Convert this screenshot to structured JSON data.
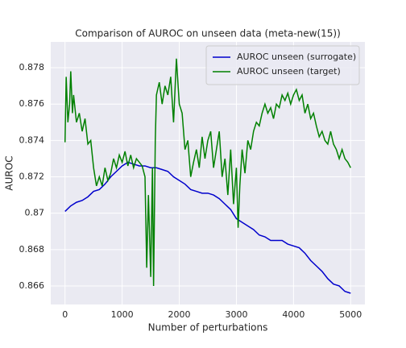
{
  "chart_data": {
    "type": "line",
    "title": "Comparison of AUROC on unseen data (meta-new(15))",
    "x_label": "Number of perturbations",
    "y_label": "AUROC",
    "xlim": [
      -250,
      5250
    ],
    "ylim": [
      0.86498,
      0.87942
    ],
    "xticks": [
      0,
      1000,
      2000,
      3000,
      4000,
      5000
    ],
    "yticks": [
      0.866,
      0.868,
      0.87,
      0.872,
      0.874,
      0.876,
      0.878
    ],
    "grid": true,
    "legend": "upper right",
    "series": [
      {
        "name": "AUROC unseen (surrogate)",
        "color": "#0000cc",
        "x": [
          0,
          100,
          200,
          300,
          400,
          500,
          600,
          700,
          800,
          900,
          1000,
          1100,
          1200,
          1300,
          1400,
          1500,
          1600,
          1700,
          1800,
          1900,
          2000,
          2100,
          2200,
          2300,
          2400,
          2500,
          2600,
          2700,
          2800,
          2900,
          3000,
          3100,
          3200,
          3300,
          3400,
          3500,
          3600,
          3700,
          3800,
          3900,
          4000,
          4100,
          4200,
          4300,
          4400,
          4500,
          4600,
          4700,
          4800,
          4900,
          5000
        ],
        "values": [
          0.8701,
          0.8704,
          0.8706,
          0.8707,
          0.8709,
          0.8712,
          0.8713,
          0.8716,
          0.872,
          0.8723,
          0.8726,
          0.8728,
          0.8727,
          0.8726,
          0.8726,
          0.8725,
          0.8725,
          0.8724,
          0.8723,
          0.872,
          0.8718,
          0.8716,
          0.8713,
          0.8712,
          0.8711,
          0.8711,
          0.871,
          0.8708,
          0.8705,
          0.8702,
          0.8697,
          0.8695,
          0.8693,
          0.8691,
          0.8688,
          0.8687,
          0.8685,
          0.8685,
          0.8685,
          0.8683,
          0.8682,
          0.8681,
          0.8678,
          0.8674,
          0.8671,
          0.8668,
          0.8664,
          0.8661,
          0.866,
          0.8657,
          0.8656
        ]
      },
      {
        "name": "AUROC unseen (target)",
        "color": "#008000",
        "x": [
          0,
          20,
          50,
          80,
          100,
          130,
          150,
          200,
          250,
          300,
          350,
          400,
          450,
          500,
          550,
          600,
          650,
          700,
          750,
          800,
          850,
          900,
          950,
          1000,
          1050,
          1100,
          1150,
          1200,
          1250,
          1300,
          1350,
          1400,
          1430,
          1460,
          1500,
          1530,
          1550,
          1580,
          1600,
          1650,
          1700,
          1750,
          1800,
          1850,
          1900,
          1950,
          2000,
          2050,
          2100,
          2150,
          2200,
          2250,
          2300,
          2350,
          2400,
          2450,
          2500,
          2550,
          2600,
          2650,
          2700,
          2750,
          2800,
          2850,
          2900,
          2950,
          3000,
          3030,
          3060,
          3100,
          3150,
          3200,
          3250,
          3300,
          3350,
          3400,
          3450,
          3500,
          3550,
          3600,
          3650,
          3700,
          3750,
          3800,
          3850,
          3900,
          3950,
          4000,
          4050,
          4100,
          4150,
          4200,
          4250,
          4300,
          4350,
          4400,
          4450,
          4500,
          4550,
          4600,
          4650,
          4700,
          4750,
          4800,
          4850,
          4900,
          4950,
          5000
        ],
        "values": [
          0.8739,
          0.8775,
          0.875,
          0.876,
          0.8778,
          0.8755,
          0.8765,
          0.875,
          0.8755,
          0.8745,
          0.8752,
          0.8738,
          0.874,
          0.8725,
          0.8715,
          0.872,
          0.8715,
          0.8725,
          0.8718,
          0.8722,
          0.873,
          0.8725,
          0.8732,
          0.8728,
          0.8734,
          0.8726,
          0.8732,
          0.8725,
          0.873,
          0.8728,
          0.8726,
          0.872,
          0.867,
          0.871,
          0.8665,
          0.8725,
          0.866,
          0.874,
          0.8765,
          0.8772,
          0.876,
          0.877,
          0.8765,
          0.8775,
          0.875,
          0.8785,
          0.876,
          0.8755,
          0.8735,
          0.874,
          0.872,
          0.8728,
          0.8735,
          0.8725,
          0.8742,
          0.873,
          0.874,
          0.8745,
          0.8725,
          0.8735,
          0.8745,
          0.872,
          0.873,
          0.871,
          0.8735,
          0.8705,
          0.8725,
          0.8692,
          0.8715,
          0.8735,
          0.8722,
          0.874,
          0.8735,
          0.8745,
          0.875,
          0.8748,
          0.8755,
          0.876,
          0.8755,
          0.8758,
          0.8752,
          0.876,
          0.8758,
          0.8765,
          0.8762,
          0.8766,
          0.876,
          0.8765,
          0.8768,
          0.8762,
          0.8765,
          0.8755,
          0.876,
          0.8752,
          0.8755,
          0.8748,
          0.8742,
          0.8745,
          0.874,
          0.8738,
          0.8745,
          0.8738,
          0.8735,
          0.873,
          0.8735,
          0.873,
          0.8728,
          0.8725
        ]
      }
    ]
  }
}
